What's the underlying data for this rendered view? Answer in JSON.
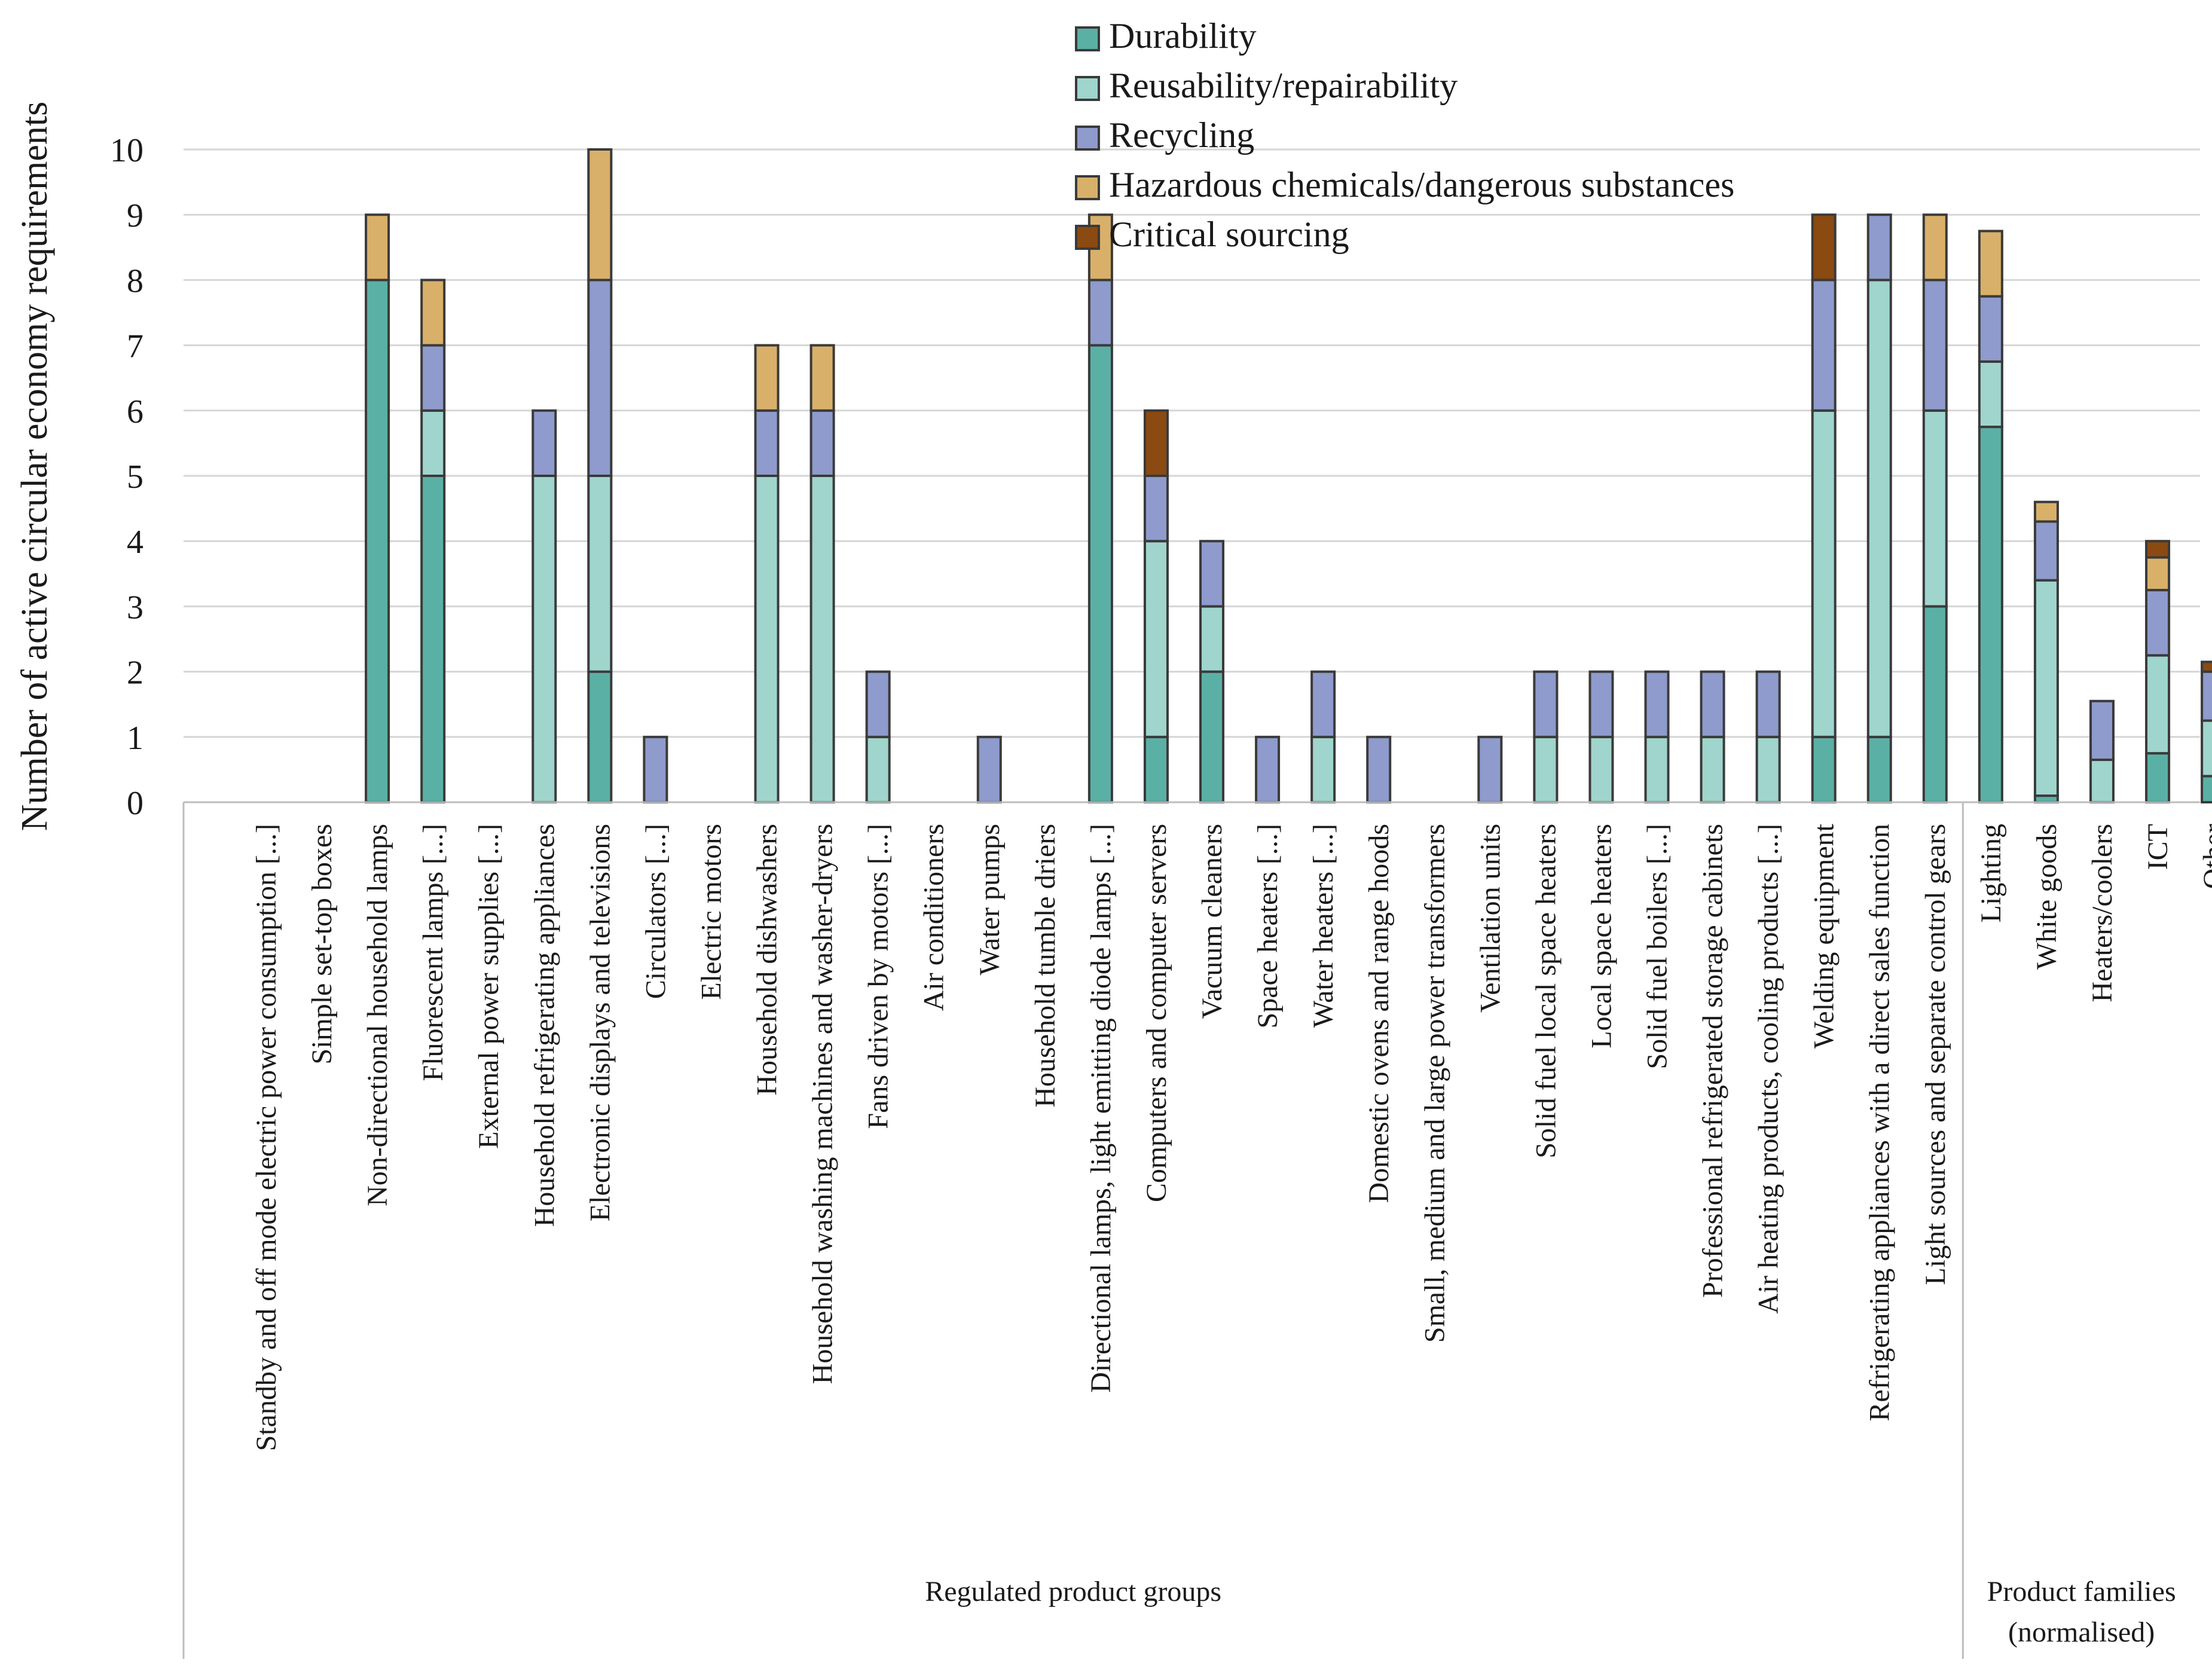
{
  "chart_data": {
    "type": "bar",
    "stacked": true,
    "ylabel": "Number of active circular economy requirements",
    "ylim": [
      0,
      10
    ],
    "yticks": [
      0,
      1,
      2,
      3,
      4,
      5,
      6,
      7,
      8,
      9,
      10
    ],
    "grid": true,
    "legend_position": "top",
    "categories": [
      "Standby and off mode electric power consumption [...]",
      "Simple set-top boxes",
      "Non-directional household lamps",
      "Fluorescent lamps [...]",
      "External power supplies [...]",
      "Household refrigerating appliances",
      "Electronic displays and televisions",
      "Circulators [...]",
      "Electric motors",
      "Household dishwashers",
      "Household washing machines and washer-dryers",
      "Fans driven by motors [...]",
      "Air conditioners",
      "Water pumps",
      "Household tumble driers",
      "Directional lamps, light emitting diode lamps [...]",
      "Computers and computer servers",
      "Vacuum cleaners",
      "Space heaters [...]",
      "Water heaters [...]",
      "Domestic ovens and range hoods",
      "Small, medium and large power transformers",
      "Ventilation units",
      "Solid fuel local space heaters",
      "Local space heaters",
      "Solid fuel boilers [...]",
      "Professional refrigerated storage cabinets",
      "Air heating products, cooling products [...]",
      "Welding equipment",
      "Refrigerating appliances with a direct sales function",
      "Light sources and separate control gears",
      "Lighting",
      "White goods",
      "Heaters/coolers",
      "ICT",
      "Other"
    ],
    "groups": [
      {
        "label": "Regulated product groups",
        "start": 0,
        "end": 30
      },
      {
        "label_lines": [
          "Product families",
          "(normalised)"
        ],
        "start": 31,
        "end": 35
      }
    ],
    "series": [
      {
        "name": "Durability",
        "color": "#5bb0a5",
        "values": [
          0,
          0,
          8,
          5,
          0,
          0,
          2,
          0,
          0,
          0,
          0,
          0,
          0,
          0,
          0,
          7,
          1,
          2,
          0,
          0,
          0,
          0,
          0,
          0,
          0,
          0,
          0,
          0,
          1,
          1,
          3,
          5.75,
          0.1,
          0,
          0.75,
          0.4
        ]
      },
      {
        "name": "Reusability/repairability",
        "color": "#9fd5cc",
        "values": [
          0,
          0,
          0,
          1,
          0,
          5,
          3,
          0,
          0,
          5,
          5,
          1,
          0,
          0,
          0,
          0,
          3,
          1,
          0,
          1,
          0,
          0,
          0,
          1,
          1,
          1,
          1,
          1,
          5,
          7,
          3,
          1,
          3.3,
          0.65,
          1.5,
          0.85
        ]
      },
      {
        "name": "Recycling",
        "color": "#8e9bcc",
        "values": [
          0,
          0,
          0,
          1,
          0,
          1,
          3,
          1,
          0,
          1,
          1,
          1,
          0,
          1,
          0,
          1,
          1,
          1,
          1,
          1,
          1,
          0,
          1,
          1,
          1,
          1,
          1,
          1,
          2,
          1,
          2,
          1,
          0.9,
          0.9,
          1,
          0.75
        ]
      },
      {
        "name": "Hazardous chemicals/dangerous substances",
        "color": "#d9b06a",
        "values": [
          0,
          0,
          1,
          1,
          0,
          0,
          2,
          0,
          0,
          1,
          1,
          0,
          0,
          0,
          0,
          1,
          0,
          0,
          0,
          0,
          0,
          0,
          0,
          0,
          0,
          0,
          0,
          0,
          0,
          0,
          1,
          1,
          0.3,
          0,
          0.5,
          0
        ]
      },
      {
        "name": "Critical sourcing",
        "color": "#8a4a12",
        "values": [
          0,
          0,
          0,
          0,
          0,
          0,
          0,
          0,
          0,
          0,
          0,
          0,
          0,
          0,
          0,
          0,
          1,
          0,
          0,
          0,
          0,
          0,
          0,
          0,
          0,
          0,
          0,
          0,
          1,
          0,
          0,
          0,
          0,
          0,
          0.25,
          0.15
        ]
      }
    ]
  }
}
